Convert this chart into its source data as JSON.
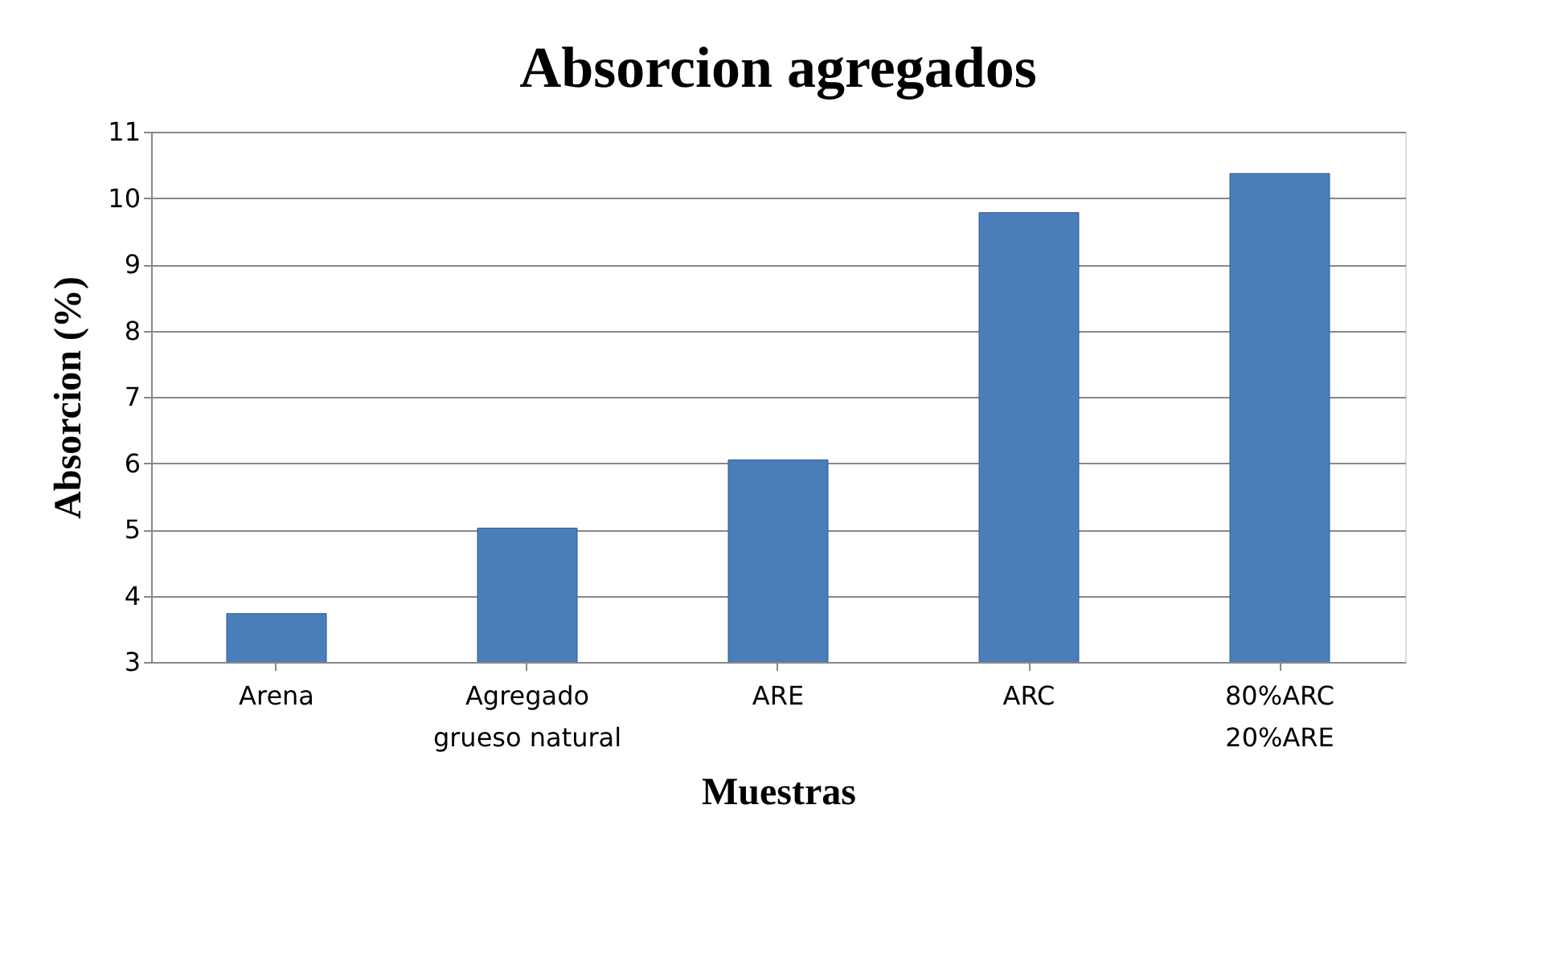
{
  "chart_data": {
    "type": "bar",
    "title": "Absorcion agregados",
    "xlabel": "Muestras",
    "ylabel": "Absorcion (%)",
    "categories": [
      "Arena",
      "Agregado\ngrueso natural",
      "ARE",
      "ARC",
      "80%ARC\n20%ARE"
    ],
    "values": [
      3.73,
      5.02,
      6.05,
      9.78,
      10.37
    ],
    "color": "#4a7ebb",
    "ylim": [
      3,
      11
    ],
    "yticks": [
      3,
      4,
      5,
      6,
      7,
      8,
      9,
      10,
      11
    ],
    "grid": "y"
  }
}
